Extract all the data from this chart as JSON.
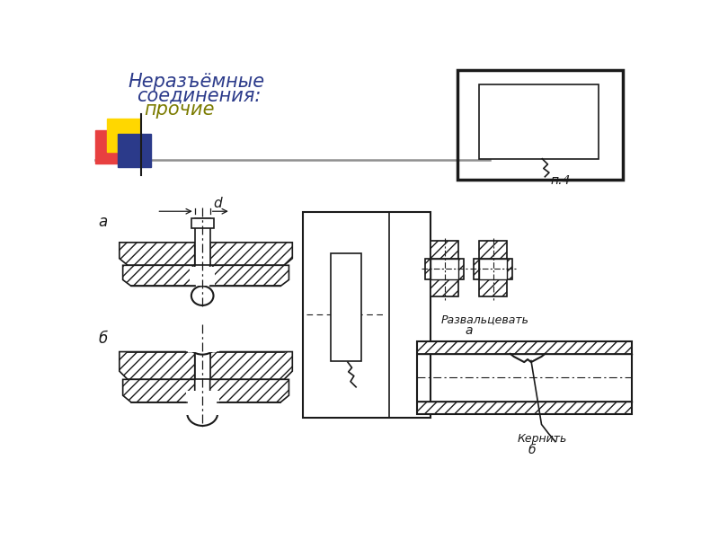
{
  "title_line1": "Неразъёмные",
  "title_line2": "соединения:",
  "title_line3": "прочие",
  "title_color1": "#2B3A8A",
  "title_color2": "#2B3A8A",
  "title_color3": "#7B7B00",
  "bg_color": "#FFFFFF",
  "label_a": "а",
  "label_b": "б",
  "label_p4": "п.4",
  "razvaltsevatь": "Развальцевать",
  "kernitь": "Кернить",
  "label_a2": "а",
  "label_b2": "б",
  "dim_d": "d",
  "line_color": "#1a1a1a",
  "hatch_color": "#1a1a1a",
  "gray_line": "#909090",
  "yellow": "#FFD700",
  "red": "#E84040",
  "blue": "#2B3A8A"
}
